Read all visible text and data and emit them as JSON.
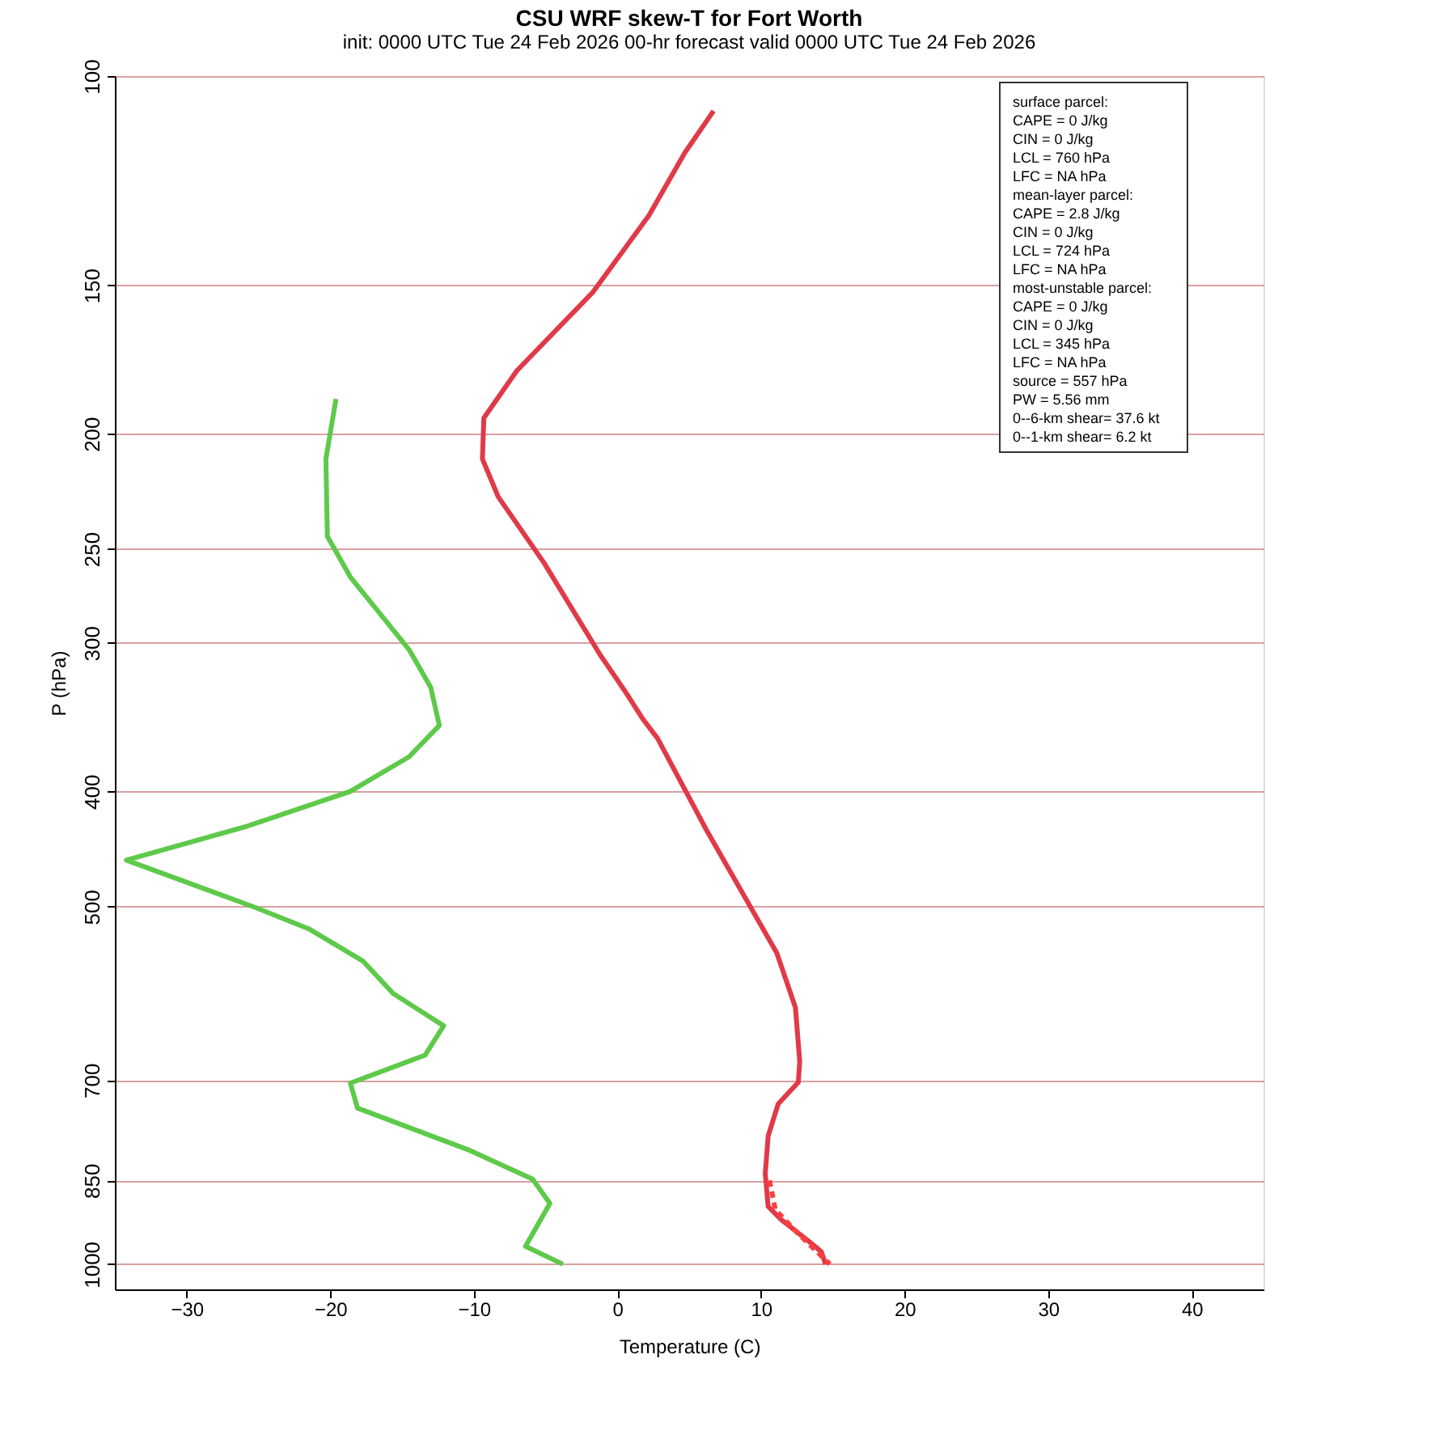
{
  "chart_data": {
    "type": "line",
    "title": "CSU WRF skew-T for Fort Worth",
    "subtitle": "init: 0000 UTC Tue 24 Feb 2026     00-hr forecast valid 0000 UTC Tue 24 Feb 2026",
    "xlabel": "Temperature (C)",
    "ylabel": "P (hPa)",
    "xlim": [
      -35,
      45
    ],
    "xticks": [
      -30,
      -20,
      -10,
      0,
      10,
      20,
      30,
      40
    ],
    "ylim": [
      1050,
      100
    ],
    "yticks": [
      100,
      150,
      200,
      250,
      300,
      400,
      500,
      700,
      850,
      1000
    ],
    "log": "y",
    "grid": "y",
    "series": [
      {
        "color": "#e03a48",
        "line_style": "solid",
        "x": [
          6.7,
          4.7,
          2.2,
          -1.7,
          -7.0,
          -9.3,
          -9.4,
          -8.3,
          -5.1,
          -1.2,
          0.5,
          1.8,
          2.8,
          6.2,
          11.1,
          12.4,
          12.7,
          12.6,
          11.2,
          10.5,
          10.3,
          10.5,
          11.4,
          13.3,
          14.2,
          14.5
        ],
        "values": [
          107,
          116,
          131,
          152,
          177,
          194,
          210,
          226,
          257,
          307,
          329,
          348,
          361,
          431,
          547,
          608,
          675,
          703,
          733,
          780,
          839,
          894,
          917,
          956,
          976,
          1000
        ]
      },
      {
        "color": "#ff4040",
        "line_style": "dashed",
        "x": [
          10.6,
          11.0,
          12.5,
          14.8
        ],
        "values": [
          850,
          900,
          940,
          1000
        ]
      },
      {
        "color": "#5ec94a",
        "line_style": "solid",
        "x": [
          -19.6,
          -20.3,
          -20.2,
          -18.6,
          -14.5,
          -13.0,
          -12.4,
          -14.5,
          -18.6,
          -25.8,
          -34.2,
          -25.2,
          -21.5,
          -17.7,
          -15.6,
          -12.1,
          -13.4,
          -18.6,
          -18.1,
          -10.4,
          -5.9,
          -4.7,
          -6.4,
          -3.8
        ],
        "values": [
          187,
          210,
          244,
          264,
          304,
          327,
          352,
          374,
          400,
          428,
          457,
          501,
          522,
          556,
          592,
          630,
          667,
          704,
          739,
          801,
          848,
          889,
          966,
          1000
        ]
      }
    ],
    "annotations": [
      "surface parcel:",
      "CAPE = 0 J/kg",
      "CIN = 0 J/kg",
      "LCL = 760 hPa",
      "LFC = NA hPa",
      "mean-layer parcel:",
      "CAPE = 2.8 J/kg",
      "CIN = 0 J/kg",
      "LCL = 724 hPa",
      "LFC = NA hPa",
      "most-unstable parcel:",
      "CAPE = 0 J/kg",
      "CIN = 0 J/kg",
      "LCL = 345 hPa",
      "LFC = NA hPa",
      "source = 557 hPa",
      "PW =  5.56 mm",
      "0--6-km shear= 37.6 kt",
      "0--1-km shear= 6.2 kt"
    ]
  }
}
